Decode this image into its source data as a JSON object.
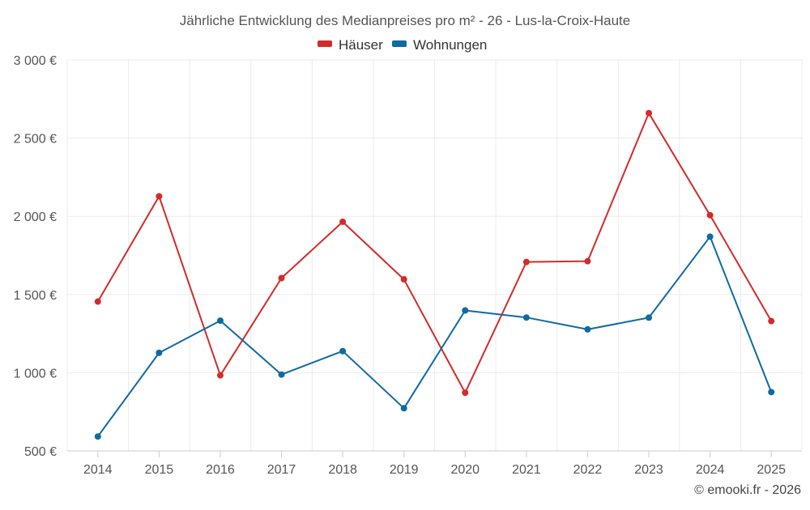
{
  "chart_data": {
    "type": "line",
    "title": "Jährliche Entwicklung des Medianpreises pro m² - 26 - Lus-la-Croix-Haute",
    "xlabel": "",
    "ylabel": "",
    "categories": [
      "2014",
      "2015",
      "2016",
      "2017",
      "2018",
      "2019",
      "2020",
      "2021",
      "2022",
      "2023",
      "2024",
      "2025"
    ],
    "ylim": [
      500,
      3000
    ],
    "yticks": [
      500,
      1000,
      1500,
      2000,
      2500,
      3000
    ],
    "ytick_labels": [
      "500 €",
      "1 000 €",
      "1 500 €",
      "2 000 €",
      "2 500 €",
      "3 000 €"
    ],
    "grid": true,
    "legend_position": "top-center",
    "series": [
      {
        "name": "Häuser",
        "color": "#d42a2a",
        "values": [
          1455,
          2128,
          983,
          1605,
          1965,
          1597,
          872,
          1708,
          1713,
          2660,
          2007,
          1330
        ]
      },
      {
        "name": "Wohnungen",
        "color": "#0f6aa3",
        "values": [
          592,
          1127,
          1333,
          988,
          1138,
          773,
          1398,
          1353,
          1277,
          1352,
          1870,
          876
        ]
      }
    ],
    "credit": "© emooki.fr - 2026"
  }
}
